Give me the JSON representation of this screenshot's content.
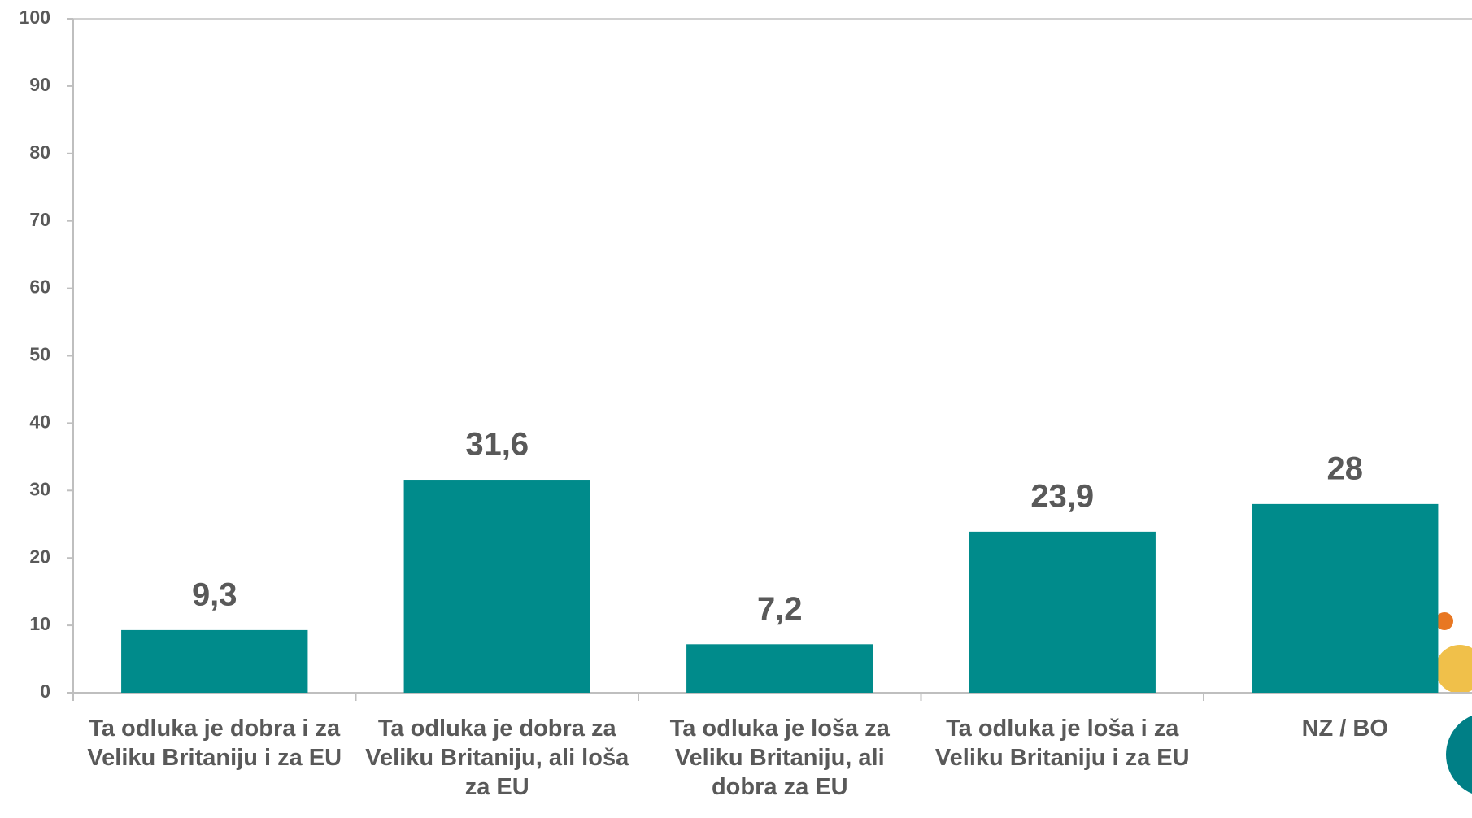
{
  "chart_data": {
    "type": "bar",
    "categories": [
      "Ta odluka je dobra i za Veliku Britaniju i za EU",
      "Ta odluka je dobra za Veliku Britaniju, ali loša za EU",
      "Ta odluka je loša za Veliku Britaniju, ali dobra za EU",
      "Ta odluka je loša i za Veliku Britaniju i za EU",
      "NZ / BO"
    ],
    "values": [
      9.3,
      31.6,
      7.2,
      23.9,
      28
    ],
    "value_labels": [
      "9,3",
      "31,6",
      "7,2",
      "23,9",
      "28"
    ],
    "color": "#008b8b",
    "ylim": [
      0,
      100
    ],
    "yticks": [
      0,
      10,
      20,
      30,
      40,
      50,
      60,
      70,
      80,
      90,
      100
    ]
  }
}
